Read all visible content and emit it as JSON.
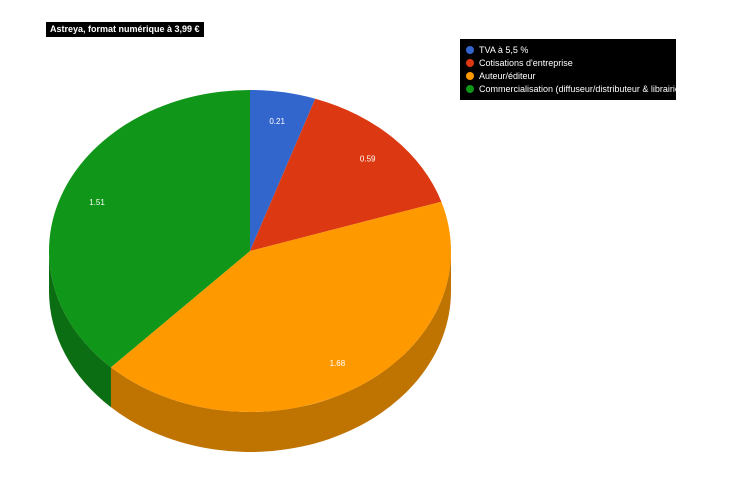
{
  "chart_data": {
    "type": "pie",
    "title": "Astreya, format numérique à 3,99 €",
    "legend_position": "top-right",
    "slices": [
      {
        "label": "TVA à 5,5 %",
        "value": 0.21,
        "value_label": "0.21",
        "color": "#3366cc",
        "dark": "#254a94"
      },
      {
        "label": "Cotisations d'entreprise",
        "value": 0.59,
        "value_label": "0.59",
        "color": "#dc3912",
        "dark": "#a02a0d"
      },
      {
        "label": "Auteur/éditeur",
        "value": 1.68,
        "value_label": "1.68",
        "color": "#ff9900",
        "dark": "#bf7300"
      },
      {
        "label": "Commercialisation (diffuseur/distributeur & librairie)",
        "value": 1.51,
        "value_label": "1.51",
        "color": "#109618",
        "dark": "#0c6e12"
      }
    ]
  }
}
